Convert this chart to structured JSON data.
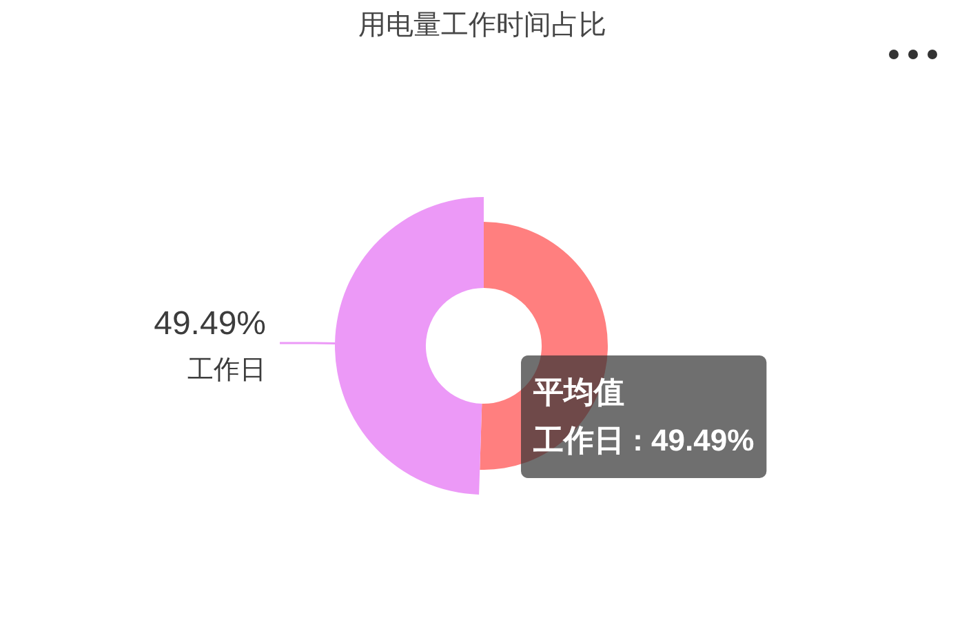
{
  "chart_data": {
    "type": "donut",
    "title": "用电量工作时间占比",
    "categories": [
      null,
      "工作日"
    ],
    "values": [
      50.51,
      49.49
    ],
    "colors": [
      "#ff7f7f",
      "#ec99f7"
    ],
    "value_labels": [
      null,
      "49.49%"
    ],
    "annotations": [
      "平均值",
      "工作日 : 49.49%"
    ]
  }
}
